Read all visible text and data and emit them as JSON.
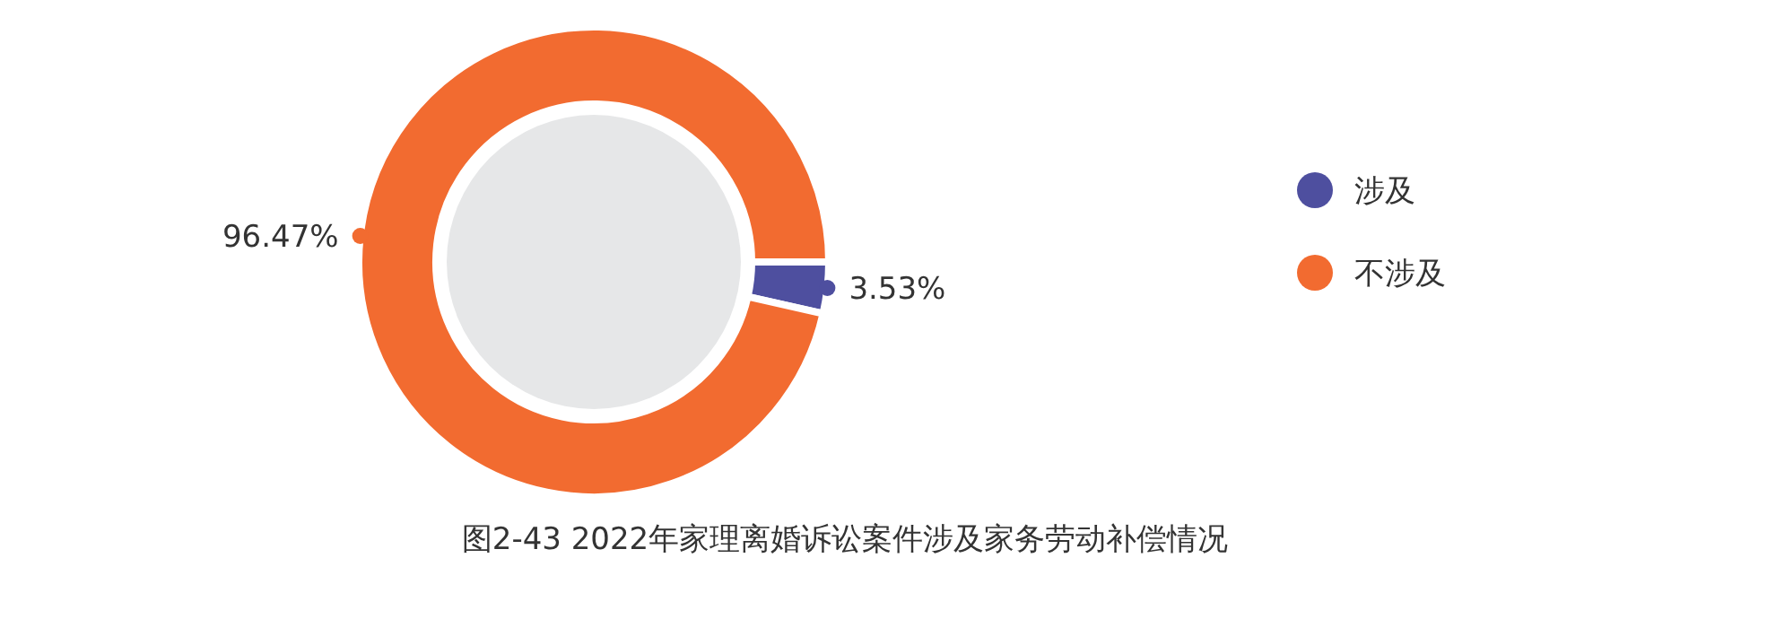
{
  "chart_data": {
    "type": "donut",
    "title": "图2-43  2022年家理离婚诉讼案件涉及家务劳动补偿情况",
    "categories": [
      "涉及",
      "不涉及"
    ],
    "values": [
      3.53,
      96.47
    ],
    "colors": [
      "#4e4f9f",
      "#f26b30"
    ],
    "value_labels": [
      "3.53%",
      "96.47%"
    ],
    "legend": "right"
  }
}
